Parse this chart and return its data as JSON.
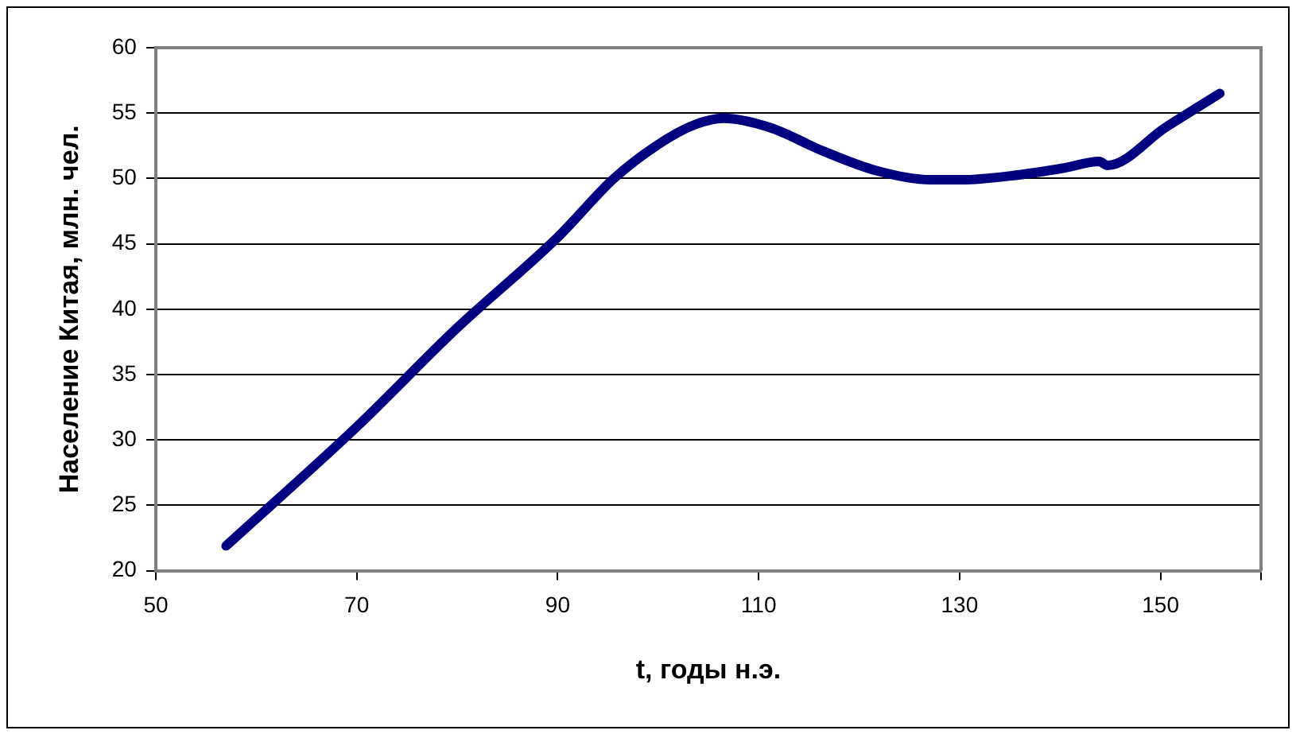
{
  "chart_data": {
    "type": "line",
    "xlabel": "t, годы н.э.",
    "ylabel": "Население Китая, млн. чел.",
    "x": [
      57,
      70,
      79.9,
      90,
      95.6,
      100,
      103.6,
      106.5,
      111.1,
      116.4,
      121.7,
      127.1,
      130.3,
      135.1,
      140.4,
      143.9,
      144.7,
      150.5,
      155.9
    ],
    "series": [
      {
        "color": "#000080",
        "values": [
          21.9,
          31,
          38.5,
          45.5,
          50,
          52.6,
          54.1,
          54.6,
          53.9,
          52.1,
          50.6,
          49.9,
          49.9,
          50.2,
          50.8,
          51.3,
          51,
          53.9,
          56.5
        ]
      }
    ],
    "xlim": [
      50,
      160
    ],
    "xticks": [
      50,
      70,
      90,
      110,
      130,
      150,
      {
        "value": 160,
        "label": null
      }
    ],
    "ylim": [
      20,
      60
    ],
    "yticks": [
      20,
      25,
      30,
      35,
      40,
      45,
      50,
      55,
      60
    ],
    "grid": "y",
    "legend": false,
    "marker": "none",
    "line_style": "solid"
  }
}
